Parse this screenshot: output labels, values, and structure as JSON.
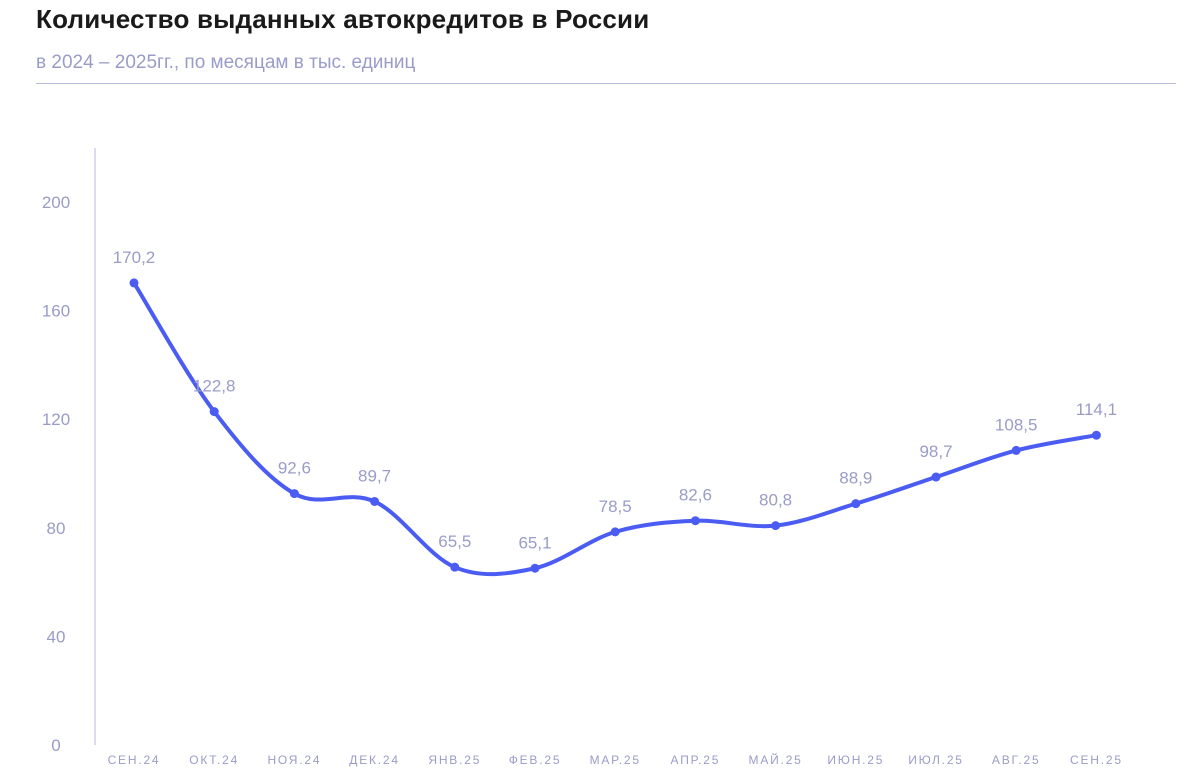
{
  "header": {
    "title": "Количество выданных автокредитов в России",
    "subtitle": "в 2024 – 2025гг., по месяцам в тыс. единиц"
  },
  "chart_data": {
    "type": "line",
    "title": "Количество выданных автокредитов в России",
    "subtitle": "в 2024 – 2025гг., по месяцам в тыс. единиц",
    "xlabel": "",
    "ylabel": "",
    "categories": [
      "СЕН.24",
      "ОКТ.24",
      "НОЯ.24",
      "ДЕК.24",
      "ЯНВ.25",
      "ФЕВ.25",
      "МАР.25",
      "АПР.25",
      "МАЙ.25",
      "ИЮН.25",
      "ИЮЛ.25",
      "АВГ.25",
      "СЕН.25"
    ],
    "values": [
      170.2,
      122.8,
      92.6,
      89.7,
      65.5,
      65.1,
      78.5,
      82.6,
      80.8,
      88.9,
      98.7,
      108.5,
      114.1
    ],
    "data_labels": [
      "170,2",
      "122,8",
      "92,6",
      "89,7",
      "65,5",
      "65,1",
      "78,5",
      "82,6",
      "80,8",
      "88,9",
      "98,7",
      "108,5",
      "114,1"
    ],
    "y_ticks": [
      0,
      40,
      80,
      120,
      160,
      200
    ],
    "ylim": [
      0,
      220
    ],
    "grid": false,
    "legend": "none",
    "smooth": true,
    "colors": {
      "line": "#4a5cf2",
      "labels": "#9a9cc8",
      "axis": "#b8badb"
    }
  }
}
